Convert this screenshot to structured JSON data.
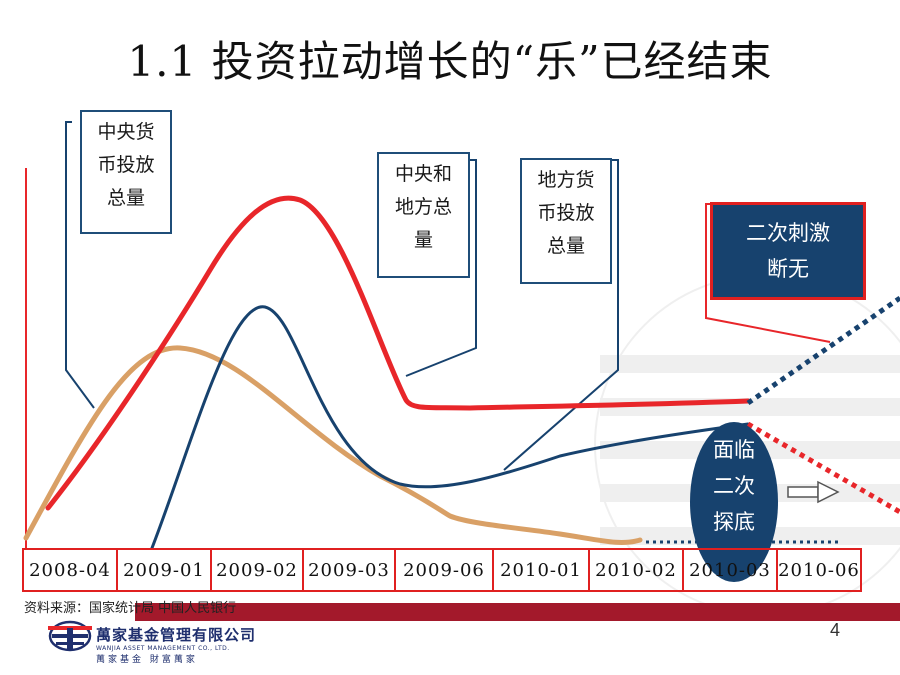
{
  "title": "1.1  投资拉动增长的“乐”已经结束",
  "callouts": {
    "central_money": [
      "中央货",
      "币投放",
      "总量"
    ],
    "central_local": [
      "中央和",
      "地方总",
      "量"
    ],
    "local_money": [
      "地方货",
      "币投放",
      "总量"
    ],
    "second_stimulus": [
      "二次刺激",
      "断无"
    ],
    "double_dip": [
      "面临",
      "二次",
      "探底"
    ]
  },
  "x_axis": [
    "2008-04",
    "2009-01",
    "2009-02",
    "2009-03",
    "2009-06",
    "2010-01",
    "2010-02",
    "2010-03",
    "2010-06"
  ],
  "source_note": "资料来源：国家统计局 中国人民银行",
  "logo": {
    "name": "萬家基金管理有限公司",
    "sub": "WANJIA ASSET MANAGEMENT CO., LTD.",
    "tagline": "萬家基金 財富萬家"
  },
  "page_number": "4",
  "colors": {
    "red": "#e8262a",
    "navy": "#17426e",
    "tan": "#d9a066",
    "bar": "#a3192b"
  }
}
